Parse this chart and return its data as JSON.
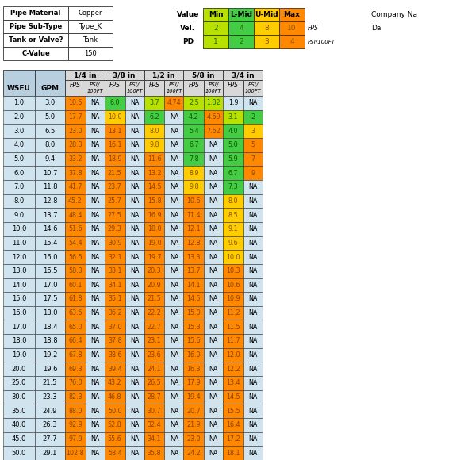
{
  "pipe_info": [
    [
      "Pipe Material",
      "Copper"
    ],
    [
      "Pipe Sub-Type",
      "Type_K"
    ],
    [
      "Tank or Valve?",
      "Tank"
    ],
    [
      "C-Value",
      "150"
    ]
  ],
  "legend_labels": [
    "Min",
    "L-Mid",
    "U-Mid",
    "Max"
  ],
  "legend_colors": [
    "#aadd00",
    "#44cc44",
    "#ffcc00",
    "#ff8800"
  ],
  "vel_values": [
    "2",
    "4",
    "8",
    "10"
  ],
  "pd_values": [
    "1",
    "2",
    "3",
    "4"
  ],
  "pipe_sizes": [
    "1/4 in",
    "3/8 in",
    "1/2 in",
    "5/8 in",
    "3/4 in"
  ],
  "rows": [
    [
      1.0,
      3.0,
      10.6,
      "NA",
      6.0,
      "NA",
      3.7,
      4.74,
      2.5,
      1.82,
      1.9,
      ""
    ],
    [
      2.0,
      5.0,
      17.7,
      "NA",
      10.0,
      "NA",
      6.2,
      "NA",
      4.2,
      4.69,
      3.1,
      "2"
    ],
    [
      3.0,
      6.5,
      23.0,
      "NA",
      13.1,
      "NA",
      8.0,
      "NA",
      5.4,
      7.62,
      4.0,
      "3"
    ],
    [
      4.0,
      8.0,
      28.3,
      "NA",
      16.1,
      "NA",
      9.8,
      "NA",
      6.7,
      "NA",
      5.0,
      "5"
    ],
    [
      5.0,
      9.4,
      33.2,
      "NA",
      18.9,
      "NA",
      11.6,
      "NA",
      7.8,
      "NA",
      5.9,
      "7"
    ],
    [
      6.0,
      10.7,
      37.8,
      "NA",
      21.5,
      "NA",
      13.2,
      "NA",
      8.9,
      "NA",
      6.7,
      "9"
    ],
    [
      7.0,
      11.8,
      41.7,
      "NA",
      23.7,
      "NA",
      14.5,
      "NA",
      9.8,
      "NA",
      7.3,
      ""
    ],
    [
      8.0,
      12.8,
      45.2,
      "NA",
      25.7,
      "NA",
      15.8,
      "NA",
      10.6,
      "NA",
      8.0,
      ""
    ],
    [
      9.0,
      13.7,
      48.4,
      "NA",
      27.5,
      "NA",
      16.9,
      "NA",
      11.4,
      "NA",
      8.5,
      ""
    ],
    [
      10.0,
      14.6,
      51.6,
      "NA",
      29.3,
      "NA",
      18.0,
      "NA",
      12.1,
      "NA",
      9.1,
      ""
    ],
    [
      11.0,
      15.4,
      54.4,
      "NA",
      30.9,
      "NA",
      19.0,
      "NA",
      12.8,
      "NA",
      9.6,
      ""
    ],
    [
      12.0,
      16.0,
      56.5,
      "NA",
      32.1,
      "NA",
      19.7,
      "NA",
      13.3,
      "NA",
      10.0,
      ""
    ],
    [
      13.0,
      16.5,
      58.3,
      "NA",
      33.1,
      "NA",
      20.3,
      "NA",
      13.7,
      "NA",
      10.3,
      ""
    ],
    [
      14.0,
      17.0,
      60.1,
      "NA",
      34.1,
      "NA",
      20.9,
      "NA",
      14.1,
      "NA",
      10.6,
      ""
    ],
    [
      15.0,
      17.5,
      61.8,
      "NA",
      35.1,
      "NA",
      21.5,
      "NA",
      14.5,
      "NA",
      10.9,
      ""
    ],
    [
      16.0,
      18.0,
      63.6,
      "NA",
      36.2,
      "NA",
      22.2,
      "NA",
      15.0,
      "NA",
      11.2,
      ""
    ],
    [
      17.0,
      18.4,
      65.0,
      "NA",
      37.0,
      "NA",
      22.7,
      "NA",
      15.3,
      "NA",
      11.5,
      ""
    ],
    [
      18.0,
      18.8,
      66.4,
      "NA",
      37.8,
      "NA",
      23.1,
      "NA",
      15.6,
      "NA",
      11.7,
      ""
    ],
    [
      19.0,
      19.2,
      67.8,
      "NA",
      38.6,
      "NA",
      23.6,
      "NA",
      16.0,
      "NA",
      12.0,
      ""
    ],
    [
      20.0,
      19.6,
      69.3,
      "NA",
      39.4,
      "NA",
      24.1,
      "NA",
      16.3,
      "NA",
      12.2,
      ""
    ],
    [
      25.0,
      21.5,
      76.0,
      "NA",
      43.2,
      "NA",
      26.5,
      "NA",
      17.9,
      "NA",
      13.4,
      ""
    ],
    [
      30.0,
      23.3,
      82.3,
      "NA",
      46.8,
      "NA",
      28.7,
      "NA",
      19.4,
      "NA",
      14.5,
      ""
    ],
    [
      35.0,
      24.9,
      88.0,
      "NA",
      50.0,
      "NA",
      30.7,
      "NA",
      20.7,
      "NA",
      15.5,
      ""
    ],
    [
      40.0,
      26.3,
      92.9,
      "NA",
      52.8,
      "NA",
      32.4,
      "NA",
      21.9,
      "NA",
      16.4,
      ""
    ],
    [
      45.0,
      27.7,
      97.9,
      "NA",
      55.6,
      "NA",
      34.1,
      "NA",
      23.0,
      "NA",
      17.2,
      ""
    ],
    [
      50.0,
      29.1,
      102.8,
      "NA",
      58.4,
      "NA",
      35.8,
      "NA",
      24.2,
      "NA",
      18.1,
      ""
    ]
  ],
  "bg_light": "#d0e4f0",
  "bg_header": "#b8cfe0",
  "color_min": "#b8e000",
  "color_lmid": "#44cc44",
  "color_umid": "#ffcc00",
  "color_max": "#ff8800",
  "white": "#ffffff",
  "pipe_hdr_bg": "#d8d8d8"
}
